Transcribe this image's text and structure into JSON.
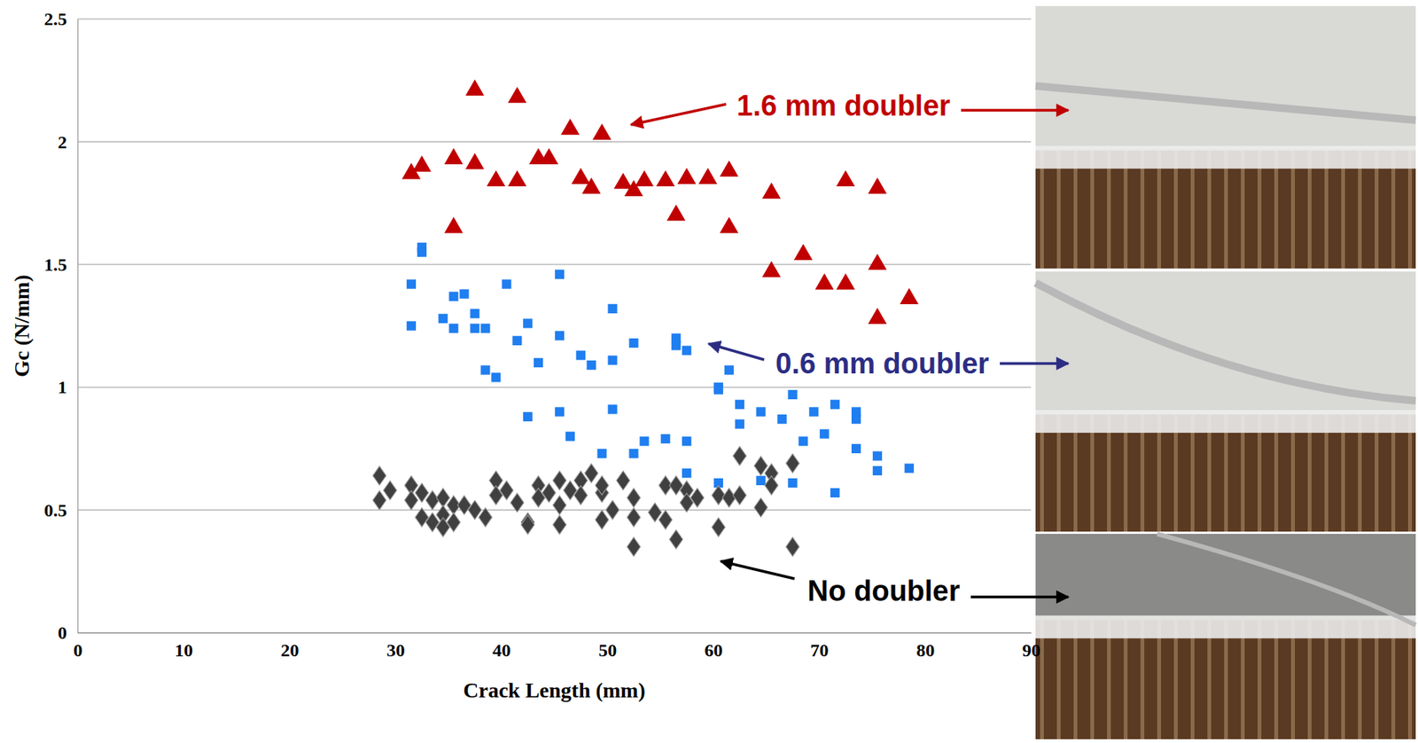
{
  "chart_data": {
    "type": "scatter",
    "x_label": "Crack Length (mm)",
    "y_label": "Gc (N/mm)",
    "xlim": [
      0,
      90
    ],
    "xticks": [
      0,
      10,
      20,
      30,
      40,
      50,
      60,
      70,
      80,
      90
    ],
    "ylim": [
      0,
      2.5
    ],
    "yticks": [
      0,
      0.5,
      1,
      1.5,
      2,
      2.5
    ],
    "grid": true,
    "series": [
      {
        "color": "#c00000",
        "marker": "triangle",
        "x": [
          31.5,
          32.5,
          35.5,
          35.5,
          37.5,
          37.5,
          39.5,
          41.5,
          41.5,
          43.5,
          44.5,
          46.5,
          47.5,
          48.5,
          49.5,
          51.5,
          52.5,
          53.5,
          55.5,
          56.5,
          57.5,
          59.5,
          61.5,
          61.5,
          65.5,
          65.5,
          68.5,
          70.5,
          72.5,
          72.5,
          75.5,
          75.5,
          75.5,
          78.5
        ],
        "values": [
          1.87,
          1.9,
          1.65,
          1.93,
          2.21,
          1.91,
          1.84,
          2.18,
          1.84,
          1.93,
          1.93,
          2.05,
          1.85,
          1.81,
          2.03,
          1.83,
          1.8,
          1.84,
          1.84,
          1.7,
          1.85,
          1.85,
          1.88,
          1.65,
          1.79,
          1.47,
          1.54,
          1.42,
          1.42,
          1.84,
          1.81,
          1.5,
          1.28,
          1.36
        ]
      },
      {
        "color": "#1f7ef0",
        "marker": "square",
        "x": [
          31.5,
          31.5,
          32.5,
          32.5,
          34.5,
          35.5,
          35.5,
          36.5,
          37.5,
          37.5,
          38.5,
          38.5,
          39.5,
          40.5,
          41.5,
          42.5,
          42.5,
          43.5,
          45.5,
          45.5,
          45.5,
          46.5,
          47.5,
          48.5,
          49.5,
          50.5,
          50.5,
          50.5,
          52.5,
          52.5,
          53.5,
          55.5,
          56.5,
          56.5,
          57.5,
          57.5,
          57.5,
          60.5,
          60.5,
          60.5,
          61.5,
          62.5,
          62.5,
          64.5,
          64.5,
          66.5,
          67.5,
          67.5,
          68.5,
          69.5,
          70.5,
          71.5,
          71.5,
          73.5,
          73.5,
          73.5,
          75.5,
          75.5,
          78.5
        ],
        "values": [
          1.42,
          1.25,
          1.57,
          1.55,
          1.28,
          1.37,
          1.24,
          1.38,
          1.3,
          1.24,
          1.24,
          1.07,
          1.04,
          1.42,
          1.19,
          1.26,
          0.88,
          1.1,
          1.46,
          1.21,
          0.9,
          0.8,
          1.13,
          1.09,
          0.73,
          1.32,
          1.11,
          0.91,
          1.18,
          0.73,
          0.78,
          0.79,
          1.2,
          1.17,
          1.15,
          0.78,
          0.65,
          1.0,
          0.99,
          0.61,
          1.07,
          0.93,
          0.85,
          0.9,
          0.62,
          0.87,
          0.97,
          0.61,
          0.78,
          0.9,
          0.81,
          0.93,
          0.57,
          0.9,
          0.87,
          0.75,
          0.72,
          0.66,
          0.67
        ]
      },
      {
        "color": "#404040",
        "marker": "diamond",
        "x": [
          28.5,
          28.5,
          29.5,
          31.5,
          31.5,
          32.5,
          32.5,
          33.5,
          33.5,
          34.5,
          34.5,
          34.5,
          35.5,
          35.5,
          36.5,
          37.5,
          38.5,
          39.5,
          39.5,
          40.5,
          41.5,
          42.5,
          42.5,
          43.5,
          43.5,
          44.5,
          45.5,
          45.5,
          45.5,
          46.5,
          47.5,
          47.5,
          48.5,
          49.5,
          49.5,
          49.5,
          50.5,
          51.5,
          52.5,
          52.5,
          52.5,
          54.5,
          55.5,
          55.5,
          56.5,
          56.5,
          57.5,
          57.5,
          58.5,
          60.5,
          60.5,
          61.5,
          62.5,
          62.5,
          64.5,
          64.5,
          65.5,
          65.5,
          67.5,
          67.5
        ],
        "values": [
          0.64,
          0.54,
          0.58,
          0.6,
          0.54,
          0.47,
          0.57,
          0.54,
          0.45,
          0.55,
          0.48,
          0.43,
          0.52,
          0.45,
          0.52,
          0.5,
          0.47,
          0.62,
          0.56,
          0.58,
          0.53,
          0.45,
          0.44,
          0.6,
          0.55,
          0.57,
          0.62,
          0.52,
          0.44,
          0.58,
          0.62,
          0.56,
          0.65,
          0.57,
          0.46,
          0.6,
          0.5,
          0.62,
          0.55,
          0.35,
          0.47,
          0.49,
          0.6,
          0.46,
          0.6,
          0.38,
          0.58,
          0.53,
          0.55,
          0.56,
          0.43,
          0.55,
          0.56,
          0.72,
          0.68,
          0.51,
          0.65,
          0.6,
          0.69,
          0.35
        ]
      }
    ],
    "annotations": [
      {
        "text": "1.6 mm doubler",
        "color": "#c00000"
      },
      {
        "text": "0.6 mm doubler",
        "color": "#2b2d83"
      },
      {
        "text": "No doubler",
        "color": "#000000"
      }
    ]
  }
}
